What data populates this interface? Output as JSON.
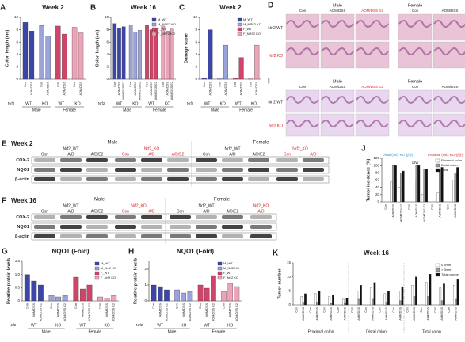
{
  "chart_data": [
    {
      "type": "bar",
      "panel": "A",
      "title": "Week 2",
      "ylabel": "Colon length (cm)",
      "row_label": "Nrf2",
      "sex_labels": [
        "Male",
        "Female"
      ],
      "legend": false,
      "ylim": [
        0,
        10
      ],
      "yticks": [
        0,
        2,
        4,
        6,
        8,
        10
      ],
      "series": [
        {
          "name": "M_WT",
          "genotype": "WT",
          "color": "#3c46a8",
          "categories": [
            "Con",
            "AOM/DSS"
          ],
          "values": [
            9.2,
            7.8
          ]
        },
        {
          "name": "M_NRF2 KO",
          "genotype": "KO",
          "color": "#9aa3dc",
          "categories": [
            "Con",
            "AOM/DSS"
          ],
          "values": [
            8.7,
            7.0
          ]
        },
        {
          "name": "F_WT",
          "genotype": "WT",
          "color": "#cf4468",
          "categories": [
            "Con",
            "AOM/DSS"
          ],
          "values": [
            8.6,
            7.3
          ]
        },
        {
          "name": "F_NRF2 KO",
          "genotype": "KO",
          "color": "#eaa6b8",
          "categories": [
            "Con",
            "AOM/DSS"
          ],
          "values": [
            8.4,
            7.5
          ]
        }
      ]
    },
    {
      "type": "bar",
      "panel": "B",
      "title": "Week 16",
      "ylabel": "Colon length (cm)",
      "row_label": "Nrf2",
      "sex_labels": [
        "Male",
        "Female"
      ],
      "legend": true,
      "ylim": [
        0,
        10
      ],
      "yticks": [
        0,
        2,
        4,
        6,
        8,
        10
      ],
      "series": [
        {
          "name": "M_WT",
          "genotype": "WT",
          "color": "#3c46a8",
          "categories": [
            "Con",
            "AOM/DSS",
            "AOM/DSS E2"
          ],
          "values": [
            9.0,
            8.2,
            8.5
          ]
        },
        {
          "name": "M_NRF2 KO",
          "genotype": "KO",
          "color": "#9aa3dc",
          "categories": [
            "Con",
            "AOM/DSS",
            "AOM/DSS E2"
          ],
          "values": [
            8.8,
            7.6,
            7.9
          ]
        },
        {
          "name": "F_WT",
          "genotype": "WT",
          "color": "#cf4468",
          "categories": [
            "Con",
            "AOM/DSS",
            "AOM/DSS E2"
          ],
          "values": [
            8.7,
            8.0,
            8.3
          ]
        },
        {
          "name": "F_NRF2 KO",
          "genotype": "KO",
          "color": "#eaa6b8",
          "categories": [
            "Con",
            "AOM/DSS",
            "AOM/DSS E2"
          ],
          "values": [
            8.6,
            7.8,
            8.1
          ]
        }
      ]
    },
    {
      "type": "bar",
      "panel": "C",
      "title": "Week 2",
      "ylabel": "Damage score",
      "row_label": "Nrf2",
      "sex_labels": [
        "Male",
        "Female"
      ],
      "legend": true,
      "ylim": [
        0,
        10
      ],
      "yticks": [
        0,
        2,
        4,
        6,
        8,
        10
      ],
      "series": [
        {
          "name": "M_WT",
          "genotype": "WT",
          "color": "#3c46a8",
          "categories": [
            "Con",
            "AOM/DSS"
          ],
          "values": [
            0.2,
            8
          ]
        },
        {
          "name": "M_NRF2 KO",
          "genotype": "KO",
          "color": "#9aa3dc",
          "categories": [
            "Con",
            "AOM/DSS"
          ],
          "values": [
            0.2,
            5.5
          ]
        },
        {
          "name": "F_WT",
          "genotype": "WT",
          "color": "#cf4468",
          "categories": [
            "Con",
            "AOM/DSS"
          ],
          "values": [
            0.2,
            3.5
          ]
        },
        {
          "name": "F_NRF2 KO",
          "genotype": "KO",
          "color": "#eaa6b8",
          "categories": [
            "Con",
            "AOM/DSS"
          ],
          "values": [
            0.2,
            5.5
          ]
        }
      ]
    },
    {
      "type": "bar",
      "panel": "G",
      "title": "NQO1 (Fold)",
      "ylabel": "Relative protein levels",
      "row_label": "Nrf2",
      "sex_labels": [
        "Male",
        "Female"
      ],
      "legend": true,
      "ylim": [
        0,
        1.5
      ],
      "yticks": [
        0,
        0.5,
        {
          "value": 1,
          "label": "1.0"
        },
        1.5
      ],
      "series": [
        {
          "name": "M_WT",
          "genotype": "WT",
          "color": "#3c46a8",
          "categories": [
            "Con",
            "AOM/DSS",
            "AOM/DSS E2"
          ],
          "values": [
            1,
            0.75,
            0.6
          ]
        },
        {
          "name": "M_Nrf2 KO",
          "genotype": "KO",
          "color": "#9aa3dc",
          "categories": [
            "Con",
            "AOM/DSS",
            "AOM/DSS E2"
          ],
          "values": [
            0.2,
            0.15,
            0.2
          ]
        },
        {
          "name": "F_WT",
          "genotype": "WT",
          "color": "#cf4468",
          "categories": [
            "Con",
            "AOM/DSS",
            "AOM/DSS E2"
          ],
          "values": [
            0.9,
            0.45,
            0.6
          ]
        },
        {
          "name": "F_Nrf2 KO",
          "genotype": "KO",
          "color": "#eaa6b8",
          "categories": [
            "Con",
            "AOM/DSS",
            "AOM/DSS E2"
          ],
          "values": [
            0.15,
            0.1,
            0.2
          ]
        }
      ]
    },
    {
      "type": "bar",
      "panel": "H",
      "title": "NQO1 (Fold)",
      "ylabel": "Relative protein levels",
      "row_label": "Nrf2",
      "sex_labels": [
        "Male",
        "Female"
      ],
      "legend": true,
      "ylim": [
        0,
        2.5
      ],
      "yticks": [
        0,
        1,
        2
      ],
      "series": [
        {
          "name": "M_WT",
          "genotype": "WT",
          "color": "#3c46a8",
          "categories": [
            "Con",
            "AOM/DSS",
            "AOM/DSS E2"
          ],
          "values": [
            1,
            0.9,
            0.7
          ]
        },
        {
          "name": "M_Nrf2 KO",
          "genotype": "KO",
          "color": "#9aa3dc",
          "categories": [
            "Con",
            "AOM/DSS",
            "AOM/DSS E2"
          ],
          "values": [
            0.7,
            0.5,
            0.6
          ]
        },
        {
          "name": "F_WT",
          "genotype": "WT",
          "color": "#cf4468",
          "categories": [
            "Con",
            "AOM/DSS",
            "AOM/DSS E2"
          ],
          "values": [
            1,
            0.8,
            1.6
          ]
        },
        {
          "name": "F_Nrf2 KO",
          "genotype": "KO",
          "color": "#eaa6b8",
          "categories": [
            "Con",
            "AOM/DSS",
            "AOM/DSS E2"
          ],
          "values": [
            0.6,
            1.1,
            0.9
          ]
        }
      ]
    },
    {
      "type": "grouped_bar",
      "panel": "J",
      "ylabel": "Tumor incidence (%)",
      "legend": true,
      "annotations": [
        "Distal (Nrf2 KO 영향)",
        "16W",
        "Proximal (Nrf2 KO 영향)"
      ],
      "categories": [
        "Con",
        "AOM/DSS",
        "AOM/DSS E2",
        "Con",
        "AOM/DSS",
        "AOM/DSS E2",
        "Con",
        "AOM/DSS",
        "Con",
        "AOM/DSS"
      ],
      "ylim": [
        0,
        120
      ],
      "yticks": [
        0,
        20,
        40,
        60,
        80,
        100,
        120
      ],
      "series": [
        {
          "name": "Proximal colon",
          "color": "#ffffff",
          "values": [
            0,
            55,
            40,
            0,
            60,
            20,
            0,
            25,
            0,
            60
          ]
        },
        {
          "name": "Distal colon",
          "color": "#9a9a9a",
          "values": [
            0,
            100,
            80,
            0,
            100,
            90,
            0,
            90,
            0,
            80
          ]
        },
        {
          "name": "Total",
          "color": "#111111",
          "values": [
            0,
            100,
            85,
            0,
            100,
            90,
            0,
            95,
            0,
            95
          ]
        }
      ]
    },
    {
      "type": "grouped_bar",
      "panel": "K",
      "title": "Week 16",
      "ylabel": "Tumor number",
      "legend": true,
      "region_labels": [
        "Proximal colon",
        "Distal colon",
        "Total colon"
      ],
      "categories": [
        "Con",
        "AOM/DSS",
        "Con",
        "AOM/DSS",
        "Con",
        "AOM/DSS",
        "Con",
        "AOM/DSS",
        "Con",
        "AOM/DSS",
        "Con",
        "AOM/DSS",
        "Con",
        "AOM/DSS",
        "Con",
        "AOM/DSS",
        "Con",
        "AOM/DSS",
        "Con",
        "AOM/DSS",
        "Con",
        "AOM/DSS",
        "Con",
        "AOM/DSS"
      ],
      "ylim": [
        0,
        15
      ],
      "yticks": [
        0,
        5,
        10,
        15
      ],
      "series": [
        {
          "name": "≤ 3mm",
          "color": "#ffffff",
          "values": [
            0,
            3,
            0,
            4,
            0,
            3,
            0,
            2,
            0,
            5,
            0,
            6,
            0,
            4,
            0,
            5,
            0,
            7,
            0,
            8,
            0,
            6,
            0,
            7
          ]
        },
        {
          "name": "> 3mm",
          "color": "#9a9a9a",
          "values": [
            0,
            1,
            0,
            1,
            0,
            0.5,
            0,
            0.5,
            0,
            2,
            0,
            2,
            0,
            1,
            0,
            1.5,
            0,
            3,
            0,
            3,
            0,
            1.5,
            0,
            2
          ]
        },
        {
          "name": "Total number",
          "color": "#111111",
          "values": [
            0,
            4,
            0,
            5,
            0,
            3.5,
            0,
            2.5,
            0,
            7,
            0,
            8,
            0,
            5,
            0,
            6.5,
            0,
            10,
            0,
            11,
            0,
            7.5,
            0,
            9
          ]
        }
      ]
    }
  ],
  "image_panels": [
    {
      "panel": "D",
      "sexes": [
        "Male",
        "Female"
      ],
      "columns": [
        "Con",
        "AOM/DSS",
        "AOM/DSS E2",
        "Con",
        "AOM/DSS"
      ],
      "rows": [
        "Nrf2 WT",
        "Nrf2 KO"
      ]
    },
    {
      "panel": "I",
      "sexes": [
        "Male",
        "Female"
      ],
      "columns": [
        "Con",
        "AOM/DSS",
        "AOM/DSS E2",
        "Con",
        "AOM/DSS"
      ],
      "rows": [
        "Nrf2 WT",
        "Nrf2 KO"
      ]
    }
  ],
  "blots": [
    {
      "panel": "E",
      "title": "Week 2",
      "sexes": [
        "Male",
        "Female"
      ],
      "rows": [
        "COX-2",
        "NQO1",
        "β-actin"
      ],
      "groups": [
        {
          "label": "Nrf2_WT",
          "color": "#222222",
          "lanes": [
            "Con",
            "A/D",
            "A/D/E2"
          ]
        },
        {
          "label": "Nrf2_KO",
          "color": "#d02828",
          "lanes": [
            "Con",
            "A/D",
            "A/D/E2"
          ]
        },
        {
          "label": "Nrf2_WT",
          "color": "#222222",
          "lanes": [
            "Con",
            "A/D",
            "A/D/E2"
          ]
        },
        {
          "label": "Nrf2_KO",
          "color": "#d02828",
          "lanes": [
            "Con",
            "A/D"
          ]
        }
      ]
    },
    {
      "panel": "F",
      "title": "Week 16",
      "sexes": [
        "Male",
        "Female"
      ],
      "rows": [
        "COX-2",
        "NQO1",
        "β-actin"
      ],
      "groups": [
        {
          "label": "Nrf2_WT",
          "color": "#222222",
          "lanes": [
            "Con",
            "A/D",
            "A/D/E2"
          ]
        },
        {
          "label": "Nrf2_KO",
          "color": "#d02828",
          "lanes": [
            "Con",
            "A/D"
          ]
        },
        {
          "label": "Nrf2_WT",
          "color": "#222222",
          "lanes": [
            "Con",
            "A/D",
            "A/D/E2"
          ]
        },
        {
          "label": "Nrf2_KO",
          "color": "#d02828",
          "lanes": [
            "A/D"
          ]
        }
      ]
    }
  ]
}
